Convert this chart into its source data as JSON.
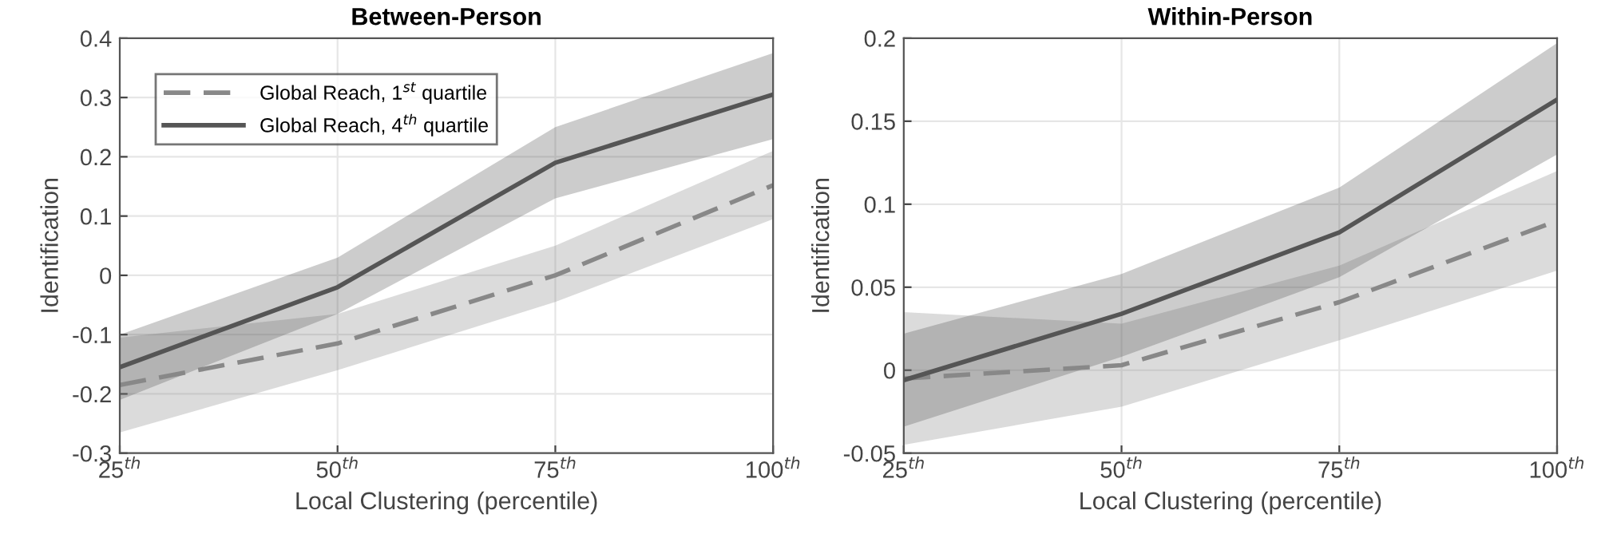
{
  "chart_data": [
    {
      "type": "line",
      "title": "Between-Person",
      "xlabel": "Local Clustering (percentile)",
      "ylabel": "Identification",
      "x": [
        25,
        50,
        75,
        100
      ],
      "xlim": [
        25,
        100
      ],
      "xticks": [
        {
          "value": 25,
          "label": "25$^{th}$"
        },
        {
          "value": 50,
          "label": "50$^{th}$"
        },
        {
          "value": 75,
          "label": "75$^{th}$"
        },
        {
          "value": 100,
          "label": "100$^{th}$"
        }
      ],
      "ylim": [
        -0.3,
        0.4
      ],
      "yticks": [
        -0.3,
        -0.2,
        -0.1,
        0,
        0.1,
        0.2,
        0.3,
        0.4
      ],
      "grid": true,
      "legend": "top left",
      "series": [
        {
          "name": "Global Reach, 1$^{st}$ quartile",
          "color": "#888888",
          "line_style": "dashed",
          "values": [
            -0.185,
            -0.115,
            0.0,
            0.152
          ],
          "lower": [
            -0.265,
            -0.16,
            -0.045,
            0.095
          ],
          "upper": [
            -0.105,
            -0.065,
            0.05,
            0.21
          ]
        },
        {
          "name": "Global Reach, 4$^{th}$ quartile",
          "color": "#555555",
          "line_style": "solid",
          "values": [
            -0.155,
            -0.02,
            0.19,
            0.305
          ],
          "lower": [
            -0.21,
            -0.065,
            0.13,
            0.23
          ],
          "upper": [
            -0.1,
            0.03,
            0.25,
            0.375
          ]
        }
      ]
    },
    {
      "type": "line",
      "title": "Within-Person",
      "xlabel": "Local Clustering (percentile)",
      "ylabel": "Identification",
      "x": [
        25,
        50,
        75,
        100
      ],
      "xlim": [
        25,
        100
      ],
      "xticks": [
        {
          "value": 25,
          "label": "25$^{th}$"
        },
        {
          "value": 50,
          "label": "50$^{th}$"
        },
        {
          "value": 75,
          "label": "75$^{th}$"
        },
        {
          "value": 100,
          "label": "100$^{th}$"
        }
      ],
      "ylim": [
        -0.05,
        0.2
      ],
      "yticks": [
        -0.05,
        0,
        0.05,
        0.1,
        0.15,
        0.2
      ],
      "grid": true,
      "series": [
        {
          "color": "#888888",
          "line_style": "dashed",
          "values": [
            -0.005,
            0.003,
            0.041,
            0.09
          ],
          "lower": [
            -0.045,
            -0.022,
            0.018,
            0.06
          ],
          "upper": [
            0.035,
            0.028,
            0.063,
            0.12
          ]
        },
        {
          "color": "#555555",
          "line_style": "solid",
          "values": [
            -0.006,
            0.034,
            0.083,
            0.163
          ],
          "lower": [
            -0.034,
            0.008,
            0.056,
            0.13
          ],
          "upper": [
            0.022,
            0.058,
            0.11,
            0.197
          ]
        }
      ]
    }
  ]
}
